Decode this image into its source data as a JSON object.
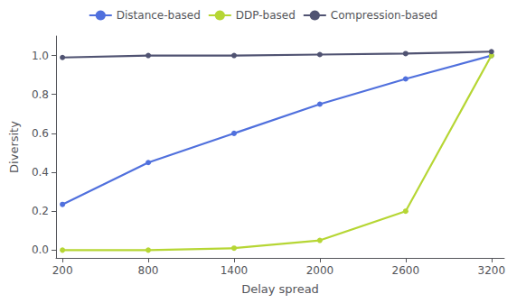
{
  "chart_data": {
    "type": "line",
    "x": [
      200,
      800,
      1400,
      2000,
      2600,
      3200
    ],
    "series": [
      {
        "name": "Distance-based",
        "values": [
          0.235,
          0.45,
          0.6,
          0.75,
          0.88,
          1.0
        ]
      },
      {
        "name": "DDP-based",
        "values": [
          0.0,
          0.0,
          0.01,
          0.05,
          0.2,
          1.0
        ]
      },
      {
        "name": "Compression-based",
        "values": [
          0.99,
          1.0,
          1.0,
          1.005,
          1.01,
          1.02
        ]
      }
    ],
    "xlabel": "Delay spread",
    "ylabel": "Diversity",
    "xlim": [
      155,
      3290
    ],
    "ylim": [
      -0.04,
      1.1
    ],
    "xticks": [
      200,
      800,
      1400,
      2000,
      2600,
      3200
    ],
    "yticks": [
      {
        "value": 0,
        "label": "0.0"
      },
      0.2,
      0.4,
      0.6,
      0.8,
      {
        "value": 1,
        "label": "1.0"
      }
    ],
    "grid": false,
    "legend": "top",
    "marker": "circle"
  }
}
